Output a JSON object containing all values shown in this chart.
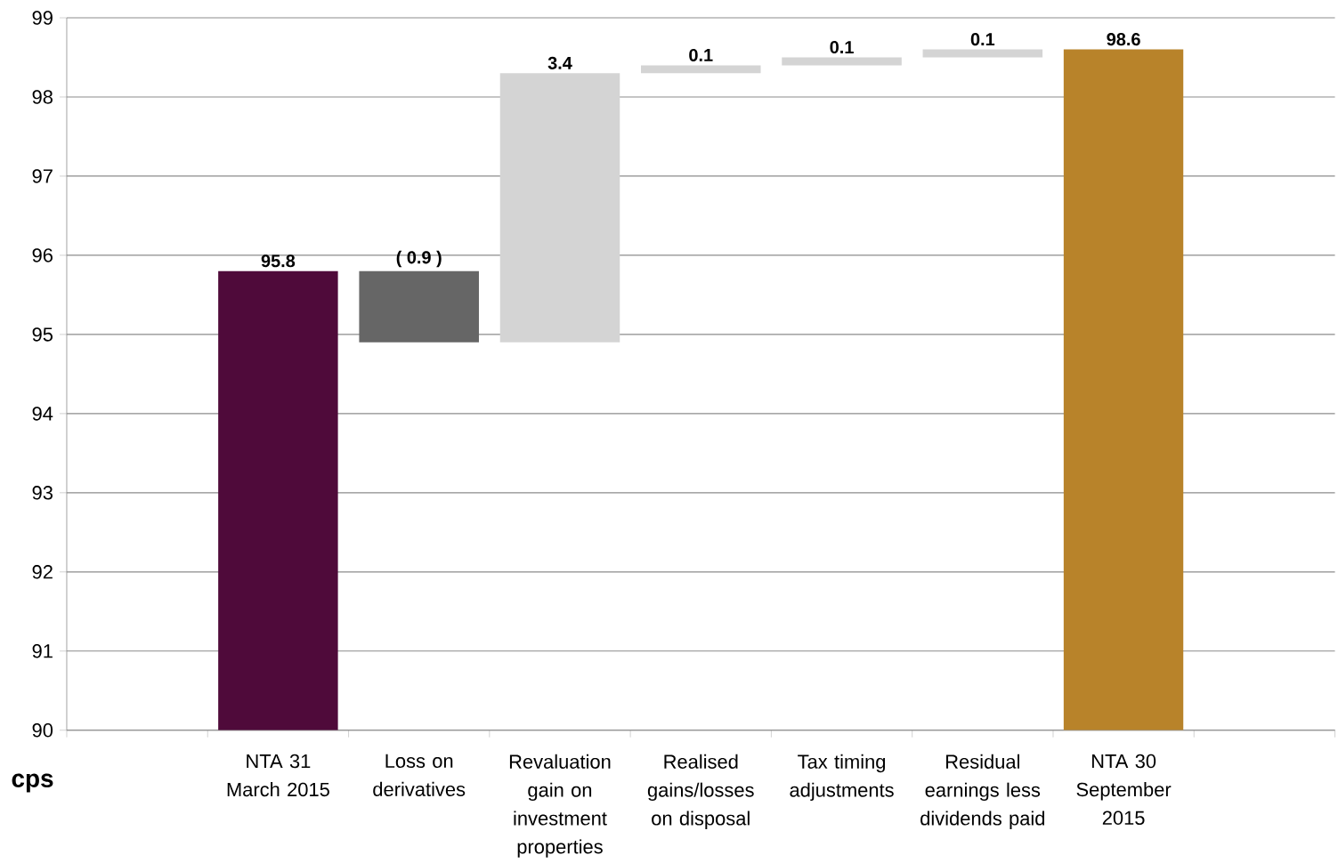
{
  "chart_data": {
    "type": "bar",
    "ylabel": "cps",
    "categories": [
      null,
      "NTA 31 March 2015",
      "Loss on derivatives",
      "Revaluation gain on investment properties",
      "Realised gains/losses on disposal",
      "Tax timing adjustments",
      "Residual earnings less dividends paid",
      "NTA 30 September 2015",
      null
    ],
    "values": [
      null,
      5.8,
      -0.9,
      3.4,
      0.1,
      0.1,
      0.1,
      8.6,
      null
    ],
    "base": [
      null,
      90,
      95.8,
      94.9,
      98.3,
      98.4,
      98.5,
      90,
      null
    ],
    "value_labels": [
      null,
      "95.8",
      "( 0.9 )",
      "3.4",
      "0.1",
      "0.1",
      "0.1",
      "98.6",
      null
    ],
    "colors": [
      null,
      "#4f0a3a",
      "#666666",
      "#d4d4d4",
      "#d4d4d4",
      "#d4d4d4",
      "#d4d4d4",
      "#b8832a",
      null
    ],
    "ylim": [
      90,
      99
    ],
    "yticks": [
      90,
      91,
      92,
      93,
      94,
      95,
      96,
      97,
      98,
      99
    ],
    "grid": "y"
  }
}
